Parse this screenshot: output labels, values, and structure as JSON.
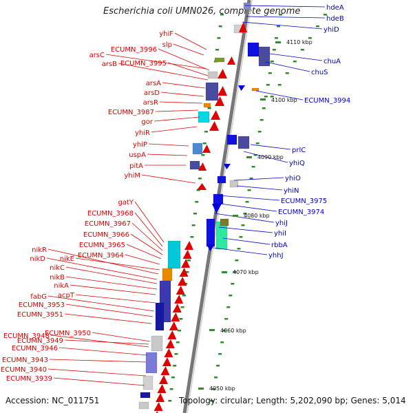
{
  "title": "Escherichia coli UMN026, complete genome",
  "footer": {
    "accession": "Accession: NC_011751",
    "info": "Topology: circular; Length: 5,202,090 bp; Genes: 5,014"
  },
  "colors": {
    "forward_label": "#e00000",
    "reverse_label": "#0000cc",
    "backbone": "#888888",
    "tick": "#2e8b2e"
  },
  "kbp_marks": [
    "4110 kbp",
    "4100 kbp",
    "4090 kbp",
    "4080 kbp",
    "4070 kbp",
    "4060 kbp",
    "4050 kbp"
  ],
  "reverse_labels": [
    "hdeA",
    "hdeB",
    "yhiD",
    "chuA",
    "chuS",
    "ECUMN_3994",
    "prlC",
    "yhiQ",
    "yhiO",
    "yhiN",
    "ECUMN_3975",
    "ECUMN_3974",
    "yhiJ",
    "yhiI",
    "rbbA",
    "yhhJ"
  ],
  "forward_labels": [
    "yhiF",
    "slp",
    "arsC",
    "ECUMN_3996",
    "arsB",
    "ECUMN_3995",
    "arsA",
    "arsD",
    "arsR",
    "ECUMN_3987",
    "gor",
    "yhiR",
    "yhiP",
    "uspA",
    "pitA",
    "yhiM",
    "gatY",
    "ECUMN_3968",
    "ECUMN_3967",
    "ECUMN_3966",
    "ECUMN_3965",
    "nikR",
    "ECUMN_3964",
    "nikD",
    "nikE",
    "nikC",
    "nikB",
    "nikA",
    "acpT",
    "fabG",
    "ECUMN_3953",
    "ECUMN_3951",
    "ECUMN_3950",
    "ECUMN_3948",
    "ECUMN_3949",
    "ECUMN_3946",
    "ECUMN_3943",
    "ECUMN_3940",
    "ECUMN_3939"
  ]
}
